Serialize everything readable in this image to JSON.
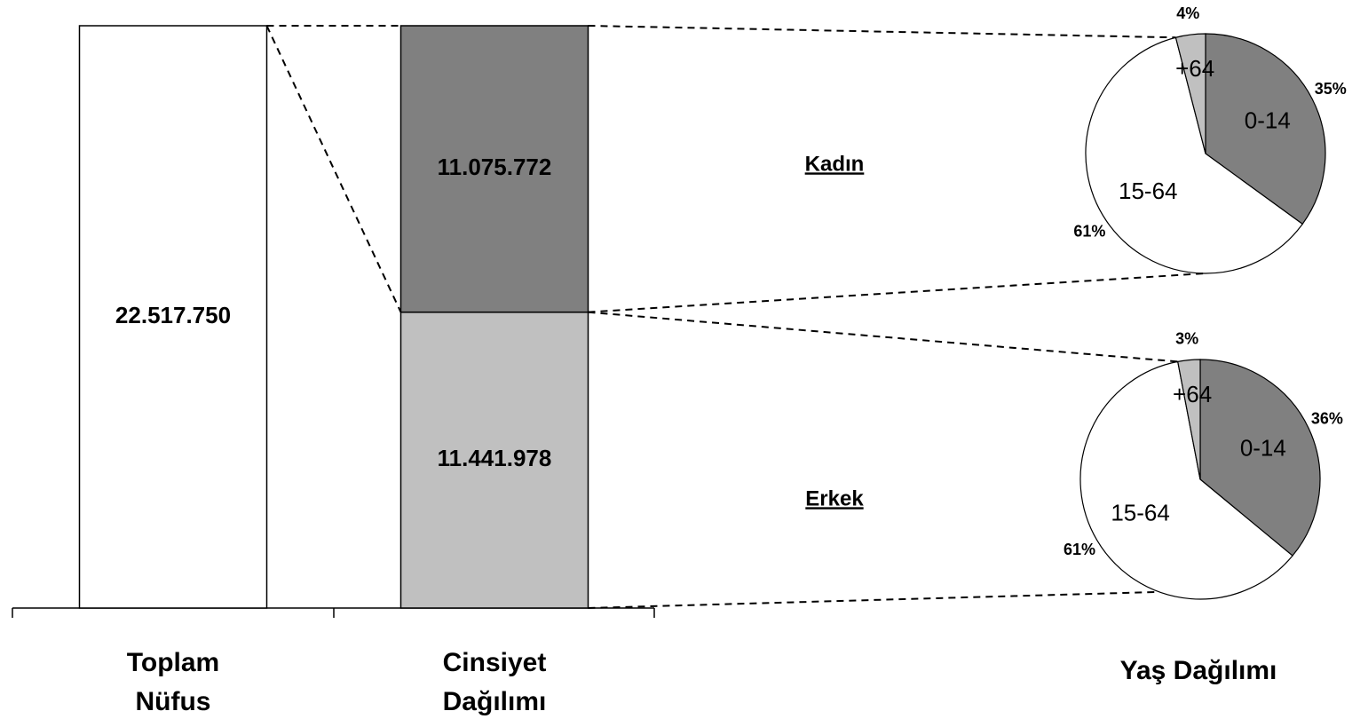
{
  "chart_data": [
    {
      "type": "bar",
      "categories": [
        "Toplam\nNüfus",
        "Cinsiyet\nDağılımı"
      ],
      "series": [
        {
          "color": "#ffffff",
          "values": [
            22517750,
            null
          ],
          "value_labels": [
            "22.517.750",
            null
          ]
        },
        {
          "name": "Erkek",
          "color": "#c0c0c0",
          "values": [
            null,
            11441978
          ],
          "value_labels": [
            null,
            "11.441.978"
          ]
        },
        {
          "name": "Kadın",
          "color": "#808080",
          "values": [
            null,
            11075772
          ],
          "value_labels": [
            null,
            "11.075.772"
          ]
        }
      ]
    },
    {
      "type": "pie",
      "xlabel": "Yaş Dağılımı",
      "categories": [
        "0-14",
        "15-64",
        "+64"
      ],
      "values": [
        35,
        61,
        4
      ],
      "value_labels": [
        "35%",
        "61%",
        "4%"
      ],
      "colors": [
        "#808080",
        "#ffffff",
        "#c0c0c0"
      ]
    },
    {
      "type": "pie",
      "categories": [
        "0-14",
        "15-64",
        "+64"
      ],
      "values": [
        36,
        61,
        3
      ],
      "value_labels": [
        "36%",
        "61%",
        "3%"
      ],
      "colors": [
        "#808080",
        "#ffffff",
        "#c0c0c0"
      ]
    }
  ]
}
